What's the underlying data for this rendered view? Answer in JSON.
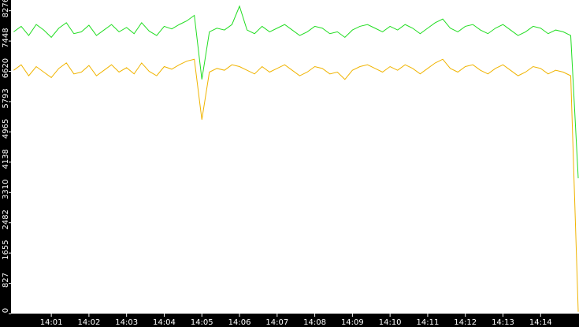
{
  "chart_data": {
    "type": "line",
    "x": [
      0,
      0.2,
      0.4,
      0.6,
      0.8,
      1,
      1.2,
      1.4,
      1.6,
      1.8,
      2,
      2.2,
      2.4,
      2.6,
      2.8,
      3,
      3.2,
      3.4,
      3.6,
      3.8,
      4,
      4.2,
      4.4,
      4.6,
      4.8,
      5,
      5.2,
      5.4,
      5.6,
      5.8,
      6,
      6.2,
      6.4,
      6.6,
      6.8,
      7,
      7.2,
      7.4,
      7.6,
      7.8,
      8,
      8.2,
      8.4,
      8.6,
      8.8,
      9,
      9.2,
      9.4,
      9.6,
      9.8,
      10,
      10.2,
      10.4,
      10.6,
      10.8,
      11,
      11.2,
      11.4,
      11.6,
      11.8,
      12,
      12.2,
      12.4,
      12.6,
      12.8,
      13,
      13.2,
      13.4,
      13.6,
      13.8,
      14,
      14.2,
      14.4,
      14.6,
      14.8,
      15
    ],
    "series": [
      {
        "color": "#22dd22",
        "values": [
          7700,
          7850,
          7600,
          7900,
          7750,
          7550,
          7800,
          7950,
          7650,
          7700,
          7880,
          7600,
          7750,
          7900,
          7700,
          7820,
          7650,
          7950,
          7720,
          7600,
          7850,
          7780,
          7900,
          8000,
          8150,
          6400,
          7700,
          7800,
          7750,
          7900,
          8400,
          7750,
          7650,
          7850,
          7700,
          7800,
          7900,
          7750,
          7600,
          7700,
          7850,
          7800,
          7650,
          7700,
          7550,
          7750,
          7850,
          7900,
          7800,
          7700,
          7850,
          7750,
          7900,
          7800,
          7650,
          7800,
          7950,
          8050,
          7800,
          7700,
          7850,
          7900,
          7750,
          7650,
          7800,
          7900,
          7750,
          7600,
          7700,
          7850,
          7800,
          7650,
          7750,
          7700,
          7600,
          3700
        ]
      },
      {
        "color": "#f0b400",
        "values": [
          6650,
          6800,
          6500,
          6750,
          6600,
          6450,
          6700,
          6850,
          6550,
          6600,
          6780,
          6500,
          6650,
          6800,
          6600,
          6720,
          6550,
          6850,
          6620,
          6500,
          6750,
          6680,
          6800,
          6900,
          6950,
          5300,
          6600,
          6700,
          6650,
          6800,
          6750,
          6650,
          6550,
          6750,
          6600,
          6700,
          6800,
          6650,
          6500,
          6600,
          6750,
          6700,
          6550,
          6600,
          6400,
          6650,
          6750,
          6800,
          6700,
          6600,
          6750,
          6650,
          6800,
          6700,
          6550,
          6700,
          6850,
          6950,
          6700,
          6600,
          6750,
          6800,
          6650,
          6550,
          6700,
          6800,
          6650,
          6500,
          6600,
          6750,
          6700,
          6550,
          6650,
          6600,
          6500,
          50
        ]
      }
    ],
    "xlim": [
      -0.07,
      15.02
    ],
    "xticks": [
      {
        "value": 1,
        "label": "14:01"
      },
      {
        "value": 2,
        "label": "14:02"
      },
      {
        "value": 3,
        "label": "14:03"
      },
      {
        "value": 4,
        "label": "14:04"
      },
      {
        "value": 5,
        "label": "14:05"
      },
      {
        "value": 6,
        "label": "14:06"
      },
      {
        "value": 7,
        "label": "14:07"
      },
      {
        "value": 8,
        "label": "14:08"
      },
      {
        "value": 9,
        "label": "14:09"
      },
      {
        "value": 10,
        "label": "14:10"
      },
      {
        "value": 11,
        "label": "14:11"
      },
      {
        "value": 12,
        "label": "14:12"
      },
      {
        "value": 13,
        "label": "14:13"
      },
      {
        "value": 14,
        "label": "14:14"
      }
    ],
    "ylim": [
      0,
      8570
    ],
    "yticks": [
      0,
      827,
      1655,
      2482,
      3310,
      4138,
      4965,
      5793,
      6620,
      7448,
      8276
    ]
  }
}
